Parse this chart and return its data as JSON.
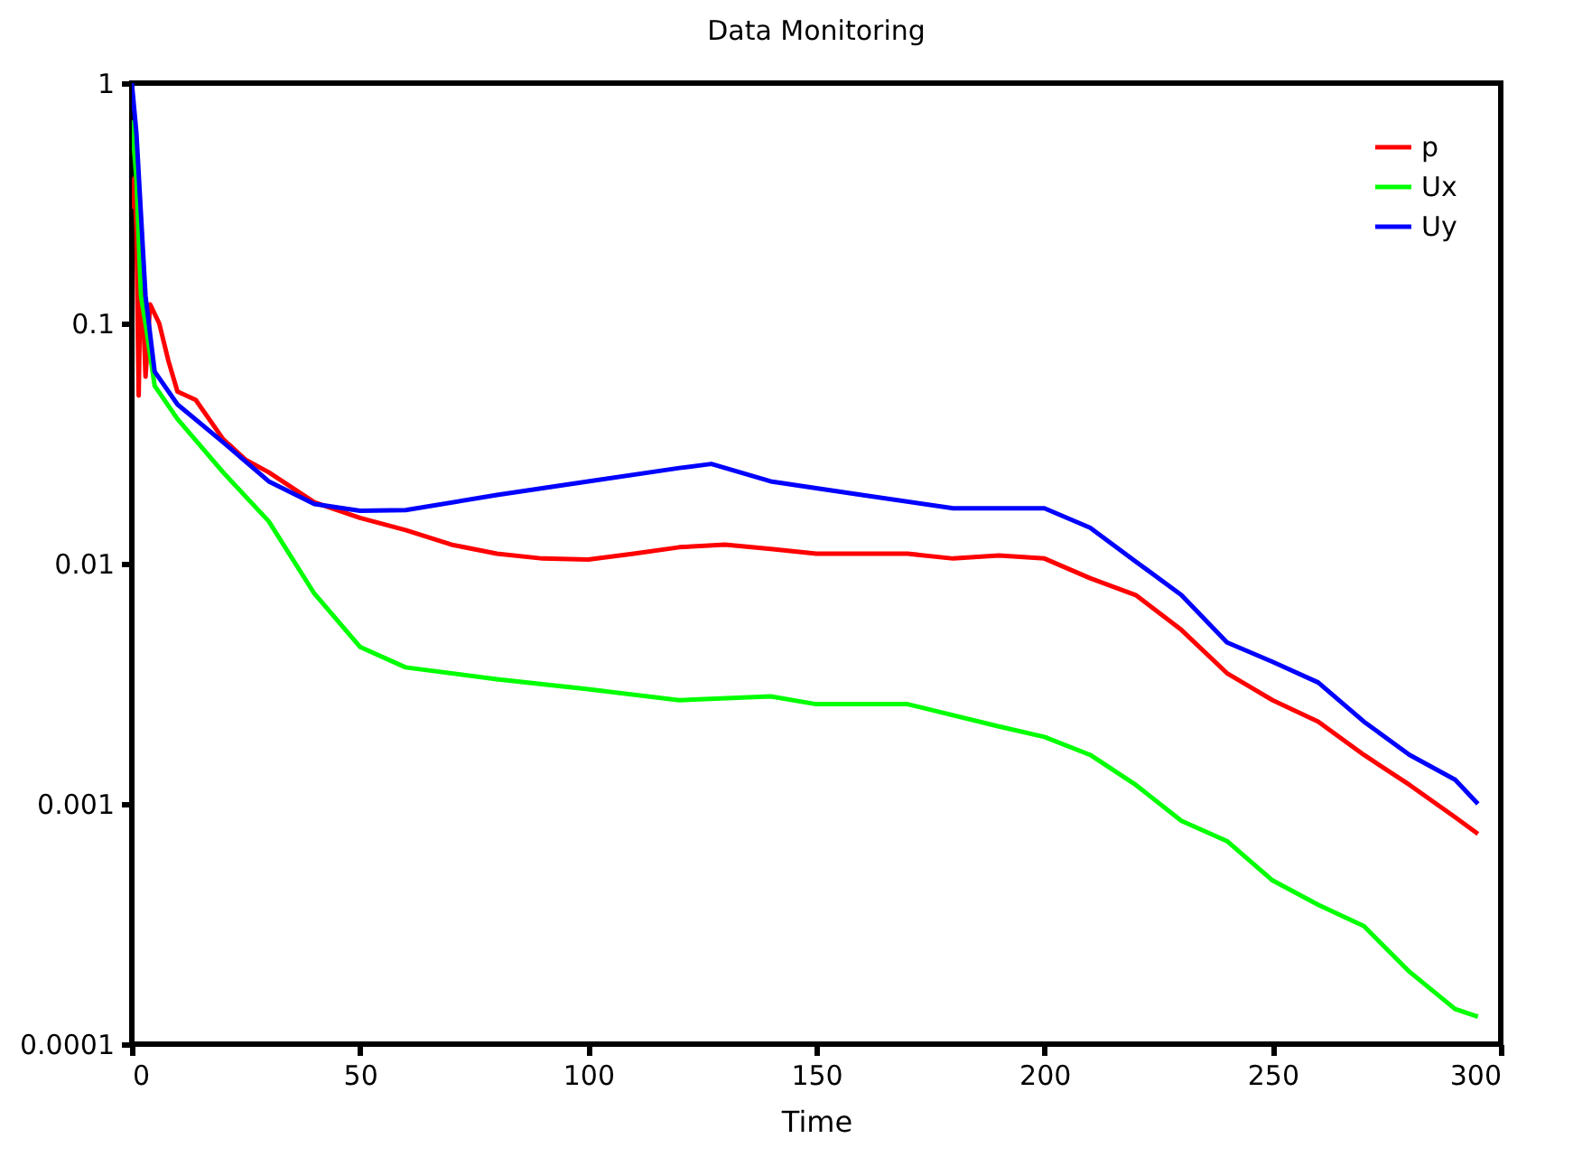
{
  "chart_data": {
    "type": "line",
    "title": "Data Monitoring",
    "xlabel": "Time",
    "log": "y",
    "grid": false,
    "legend": "top right",
    "marker": "none",
    "line_style": "solid",
    "xlim": [
      0,
      300
    ],
    "xticks": [
      0,
      50,
      100,
      150,
      200,
      250,
      300
    ],
    "ylim": [
      0.0001,
      1
    ],
    "yticks": [
      0.0001,
      0.001,
      0.01,
      0.1,
      1
    ],
    "series": [
      {
        "name": "p",
        "color": "#ff0000",
        "x": [
          0,
          0.5,
          1,
          1.5,
          2,
          3,
          4,
          6,
          8,
          10,
          14,
          20,
          25,
          30,
          40,
          50,
          60,
          70,
          80,
          90,
          100,
          110,
          120,
          130,
          140,
          150,
          160,
          170,
          180,
          190,
          200,
          210,
          220,
          230,
          240,
          250,
          260,
          270,
          280,
          290,
          295
        ],
        "values": [
          0.3,
          0.4,
          0.25,
          0.05,
          0.2,
          0.06,
          0.12,
          0.1,
          0.07,
          0.052,
          0.048,
          0.033,
          0.027,
          0.024,
          0.018,
          0.0155,
          0.0138,
          0.012,
          0.011,
          0.0105,
          0.0104,
          0.011,
          0.0117,
          0.012,
          0.0115,
          0.011,
          0.011,
          0.011,
          0.0105,
          0.0108,
          0.0105,
          0.0087,
          0.0074,
          0.0053,
          0.0035,
          0.0027,
          0.0022,
          0.0016,
          0.0012,
          0.00088,
          0.00075
        ]
      },
      {
        "name": "Ux",
        "color": "#00ff00",
        "x": [
          0,
          1,
          2,
          3,
          5,
          10,
          20,
          30,
          40,
          50,
          60,
          80,
          100,
          120,
          140,
          150,
          170,
          190,
          200,
          210,
          220,
          230,
          240,
          250,
          260,
          270,
          280,
          290,
          295
        ],
        "values": [
          0.7,
          0.4,
          0.13,
          0.1,
          0.055,
          0.04,
          0.024,
          0.015,
          0.0075,
          0.0045,
          0.0037,
          0.0033,
          0.003,
          0.0027,
          0.0028,
          0.0026,
          0.0026,
          0.0021,
          0.0019,
          0.0016,
          0.0012,
          0.00085,
          0.0007,
          0.00048,
          0.00038,
          0.00031,
          0.0002,
          0.00014,
          0.00013
        ]
      },
      {
        "name": "Uy",
        "color": "#0000ff",
        "x": [
          0,
          1,
          3,
          5,
          10,
          20,
          30,
          40,
          50,
          60,
          80,
          100,
          120,
          127,
          140,
          160,
          180,
          200,
          210,
          220,
          230,
          240,
          250,
          260,
          270,
          280,
          290,
          295
        ],
        "values": [
          1,
          0.62,
          0.13,
          0.063,
          0.046,
          0.032,
          0.022,
          0.0177,
          0.0166,
          0.0167,
          0.0193,
          0.022,
          0.025,
          0.026,
          0.022,
          0.0193,
          0.017,
          0.017,
          0.0141,
          0.0102,
          0.0074,
          0.0047,
          0.0039,
          0.0032,
          0.0022,
          0.0016,
          0.00126,
          0.001
        ]
      }
    ]
  }
}
